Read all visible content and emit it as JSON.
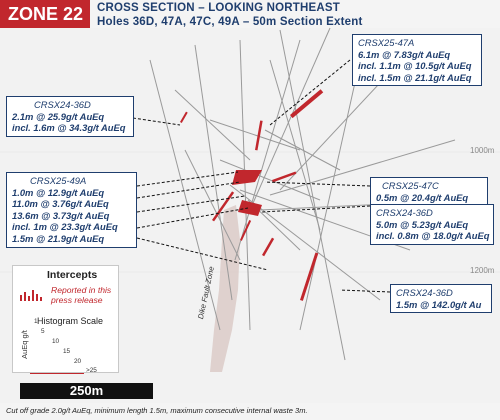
{
  "header": {
    "zone_label": "ZONE 22",
    "title_line1": "CROSS SECTION – LOOKING NORTHEAST",
    "title_line2": "Holes 36D, 47A, 47C, 49A – 50m Section Extent"
  },
  "elevations": [
    "1000m",
    "1200m"
  ],
  "callouts": {
    "c47a": {
      "hole": "CRSX25-47A",
      "lines": [
        "6.1m @ 7.83g/t AuEq",
        "incl. 1.1m @ 10.5g/t AuEq",
        "incl. 1.5m @ 21.1g/t AuEq"
      ]
    },
    "c36d_top": {
      "hole": "CRSX24-36D",
      "lines": [
        "2.1m @ 25.9g/t AuEq",
        "incl. 1.6m @ 34.3g/t AuEq"
      ]
    },
    "c49a": {
      "hole": "CRSX25-49A",
      "lines": [
        "1.0m @ 12.9g/t AuEq",
        "11.0m @ 3.76g/t AuEq",
        "13.6m @ 3.73g/t AuEq",
        "incl. 1m @ 23.3g/t AuEq",
        "1.5m @ 21.9g/t AuEq"
      ]
    },
    "c47c": {
      "hole": "CRSX25-47C",
      "lines": [
        "0.5m @ 20.4g/t AuEq"
      ]
    },
    "c36d_mid": {
      "hole": "CRSX24-36D",
      "lines": [
        "5.0m @ 5.23g/t AuEq",
        "incl. 0.8m @ 18.0g/t AuEq"
      ]
    },
    "c36d_low": {
      "hole": "CRSX24-36D",
      "lines": [
        "1.5m @ 142.0g/t Au"
      ]
    }
  },
  "legend": {
    "title": "Intercepts",
    "reported": "Reported in this press release",
    "hist_scale": "Histogram Scale",
    "axis_label": "AuEq g/t",
    "bins": [
      "1",
      "5",
      "10",
      "15",
      "20",
      ">25"
    ]
  },
  "scale_bar": {
    "label": "250m"
  },
  "fault_label": "Dike Fault Zone",
  "footnote": "Cut off grade 2.0g/t AuEq, minimum length 1.5m, maximum consecutive internal waste 3m.",
  "colors": {
    "accent": "#c1272d",
    "navy": "#1f3e6e",
    "drill": "#9a9a9a"
  }
}
